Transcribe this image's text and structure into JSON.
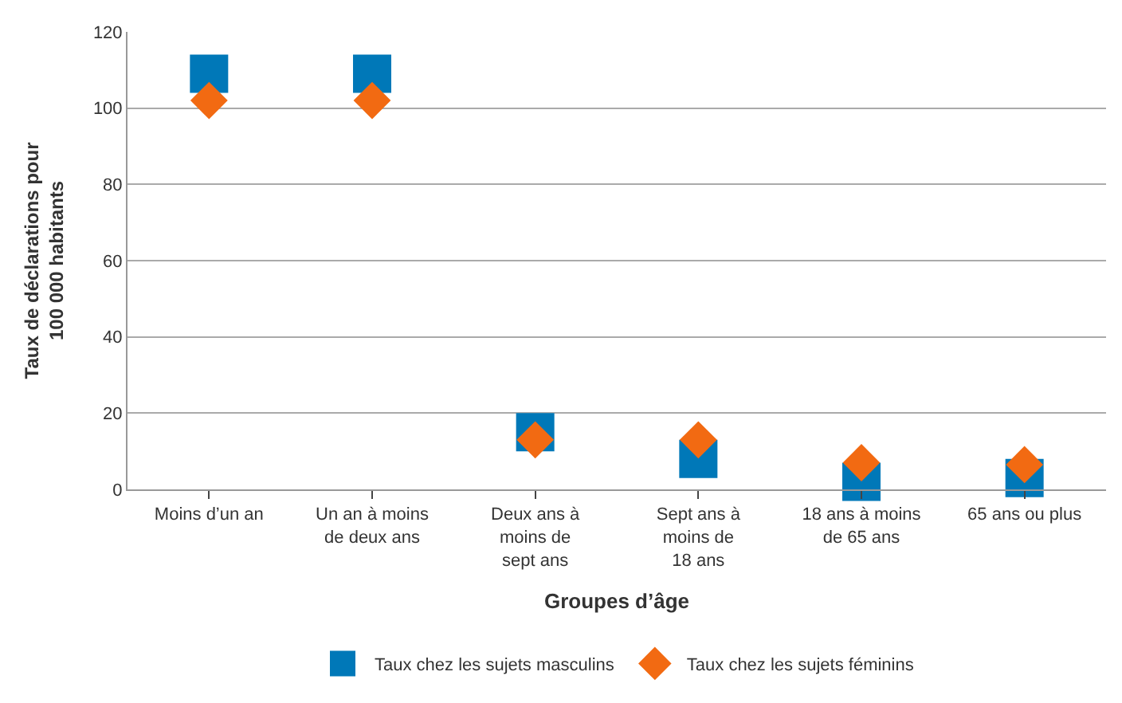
{
  "chart_data": {
    "type": "scatter",
    "xlabel": "Groupes d’âge",
    "ylabel": "Taux de déclarations pour\n100 000 habitants",
    "categories": [
      "Moins d’un an",
      "Un an à moins\nde deux ans",
      "Deux ans à\nmoins de\nsept ans",
      "Sept ans à\nmoins de\n18 ans",
      "18 ans à moins\nde 65 ans",
      "65 ans ou plus"
    ],
    "series": [
      {
        "name": "Taux chez les sujets masculins",
        "color": "#0078b8",
        "marker": "square",
        "values": [
          109,
          109,
          15,
          8,
          2,
          3
        ]
      },
      {
        "name": "Taux chez les sujets féminins",
        "color": "#f26a12",
        "marker": "diamond",
        "values": [
          102,
          102,
          13,
          13,
          7,
          6.5
        ]
      }
    ],
    "ylim": [
      0,
      120
    ],
    "yticks": [
      0,
      20,
      40,
      60,
      80,
      100,
      120
    ],
    "grid": "y",
    "legend": "bottom"
  }
}
